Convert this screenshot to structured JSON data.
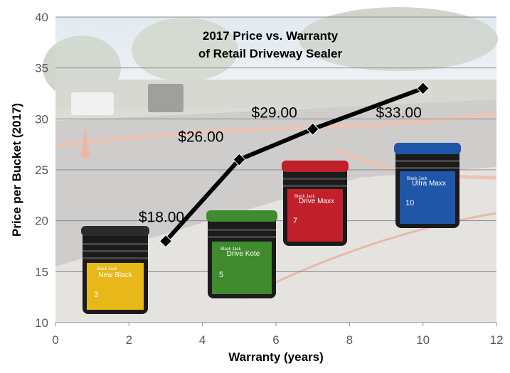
{
  "chart_data": {
    "type": "line",
    "title": "2017 Price vs. Warranty",
    "subtitle": "of Retail Driveway Sealer",
    "xlabel": "Warranty (years)",
    "ylabel": "Price per Bucket (2017)",
    "xlim": [
      0,
      12
    ],
    "ylim": [
      10,
      40
    ],
    "xticks": [
      "0",
      "2",
      "4",
      "6",
      "8",
      "10",
      "12"
    ],
    "yticks": [
      "10",
      "15",
      "20",
      "25",
      "30",
      "35",
      "40"
    ],
    "grid": true,
    "legend": "none",
    "series": [
      {
        "x": [
          3,
          5,
          7,
          10
        ],
        "y": [
          18,
          26,
          29,
          33
        ],
        "labels": [
          "$18.00",
          "$26.00",
          "$29.00",
          "$33.00"
        ],
        "color": "#000000"
      }
    ],
    "products": [
      {
        "brand": "Black Jack",
        "name": "New Black",
        "years": "3",
        "color": "#e8b818"
      },
      {
        "brand": "Black Jack",
        "name": "Drive Kote",
        "years": "5",
        "color": "#3f8b2e"
      },
      {
        "brand": "Black Jack",
        "name": "Drive Maxx",
        "years": "7",
        "color": "#c2202a"
      },
      {
        "brand": "Black Jack",
        "name": "Ultra Maxx",
        "years": "10",
        "color": "#1f56a8"
      }
    ]
  }
}
